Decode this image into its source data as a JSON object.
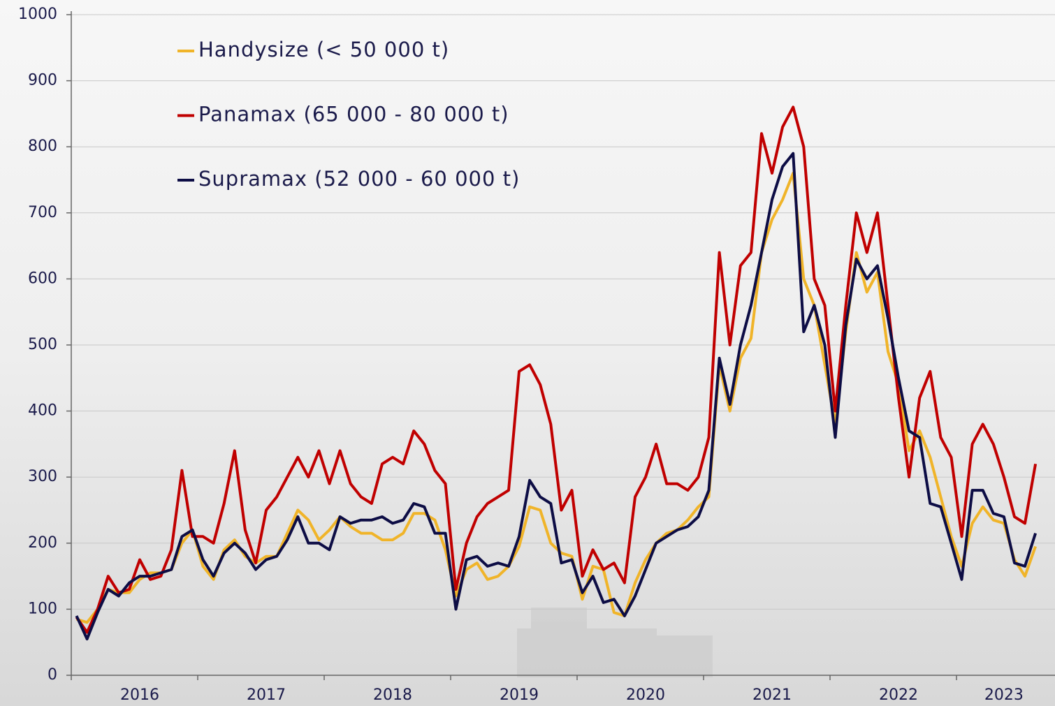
{
  "chart_data": {
    "type": "line",
    "categories": [
      null,
      null,
      null,
      null,
      null,
      null,
      "2016",
      null,
      null,
      null,
      null,
      null,
      null,
      null,
      null,
      null,
      null,
      null,
      "2017",
      null,
      null,
      null,
      null,
      null,
      null,
      null,
      null,
      null,
      null,
      null,
      "2018",
      null,
      null,
      null,
      null,
      null,
      null,
      null,
      null,
      null,
      null,
      null,
      "2019",
      null,
      null,
      null,
      null,
      null,
      null,
      null,
      null,
      null,
      null,
      null,
      "2020",
      null,
      null,
      null,
      null,
      null,
      null,
      null,
      null,
      null,
      null,
      null,
      "2021",
      null,
      null,
      null,
      null,
      null,
      null,
      null,
      null,
      null,
      null,
      null,
      "2022",
      null,
      null,
      null,
      null,
      null,
      null,
      null,
      null,
      null,
      "2023",
      null,
      null,
      null
    ],
    "series": [
      {
        "name": "Handysize (< 50 000 t)",
        "color": "#f0b429",
        "values": [
          85,
          80,
          100,
          130,
          125,
          125,
          145,
          155,
          155,
          160,
          200,
          220,
          165,
          145,
          190,
          205,
          180,
          170,
          180,
          180,
          215,
          250,
          235,
          205,
          220,
          240,
          225,
          215,
          215,
          205,
          205,
          215,
          245,
          245,
          235,
          190,
          120,
          160,
          170,
          145,
          150,
          165,
          195,
          255,
          250,
          200,
          185,
          180,
          115,
          165,
          160,
          95,
          90,
          140,
          175,
          200,
          215,
          220,
          235,
          255,
          270,
          470,
          400,
          480,
          510,
          640,
          690,
          720,
          760,
          600,
          560,
          470,
          380,
          520,
          640,
          580,
          610,
          490,
          440,
          340,
          370,
          330,
          270,
          210,
          165,
          230,
          255,
          235,
          230,
          175,
          150,
          195
        ]
      },
      {
        "name": "Panamax (65 000 - 80 000 t)",
        "color": "#c00000",
        "values": [
          88,
          65,
          100,
          150,
          125,
          130,
          175,
          145,
          150,
          190,
          310,
          210,
          210,
          200,
          260,
          340,
          220,
          170,
          250,
          270,
          300,
          330,
          300,
          340,
          290,
          340,
          290,
          270,
          260,
          320,
          330,
          320,
          370,
          350,
          310,
          290,
          130,
          200,
          240,
          260,
          270,
          280,
          460,
          470,
          440,
          380,
          250,
          280,
          150,
          190,
          160,
          170,
          140,
          270,
          300,
          350,
          290,
          290,
          280,
          300,
          360,
          640,
          500,
          620,
          640,
          820,
          760,
          830,
          860,
          800,
          600,
          560,
          400,
          560,
          700,
          640,
          700,
          560,
          420,
          300,
          420,
          460,
          360,
          330,
          210,
          350,
          380,
          350,
          300,
          240,
          230,
          320
        ]
      },
      {
        "name": "Supramax (52 000 - 60 000 t)",
        "color": "#0d0d45",
        "values": [
          90,
          55,
          95,
          130,
          120,
          140,
          150,
          150,
          155,
          160,
          210,
          220,
          175,
          150,
          185,
          200,
          185,
          160,
          175,
          180,
          205,
          240,
          200,
          200,
          190,
          240,
          230,
          235,
          235,
          240,
          230,
          235,
          260,
          255,
          215,
          215,
          100,
          175,
          180,
          165,
          170,
          165,
          210,
          295,
          270,
          260,
          170,
          175,
          125,
          150,
          110,
          115,
          90,
          120,
          160,
          200,
          210,
          220,
          225,
          240,
          280,
          480,
          410,
          500,
          560,
          640,
          720,
          770,
          790,
          520,
          560,
          500,
          360,
          530,
          630,
          600,
          620,
          540,
          450,
          370,
          360,
          260,
          255,
          200,
          145,
          280,
          280,
          245,
          240,
          170,
          165,
          215
        ]
      }
    ],
    "ylim": [
      0,
      1000
    ],
    "yticks": [
      0,
      100,
      200,
      300,
      400,
      500,
      600,
      700,
      800,
      900,
      1000
    ],
    "grid": true
  }
}
